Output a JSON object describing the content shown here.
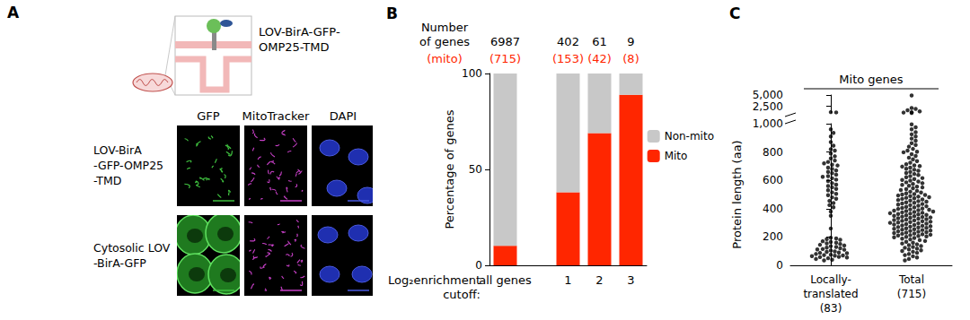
{
  "panel_labels": [
    "A",
    "B",
    "C"
  ],
  "diagram": {
    "construct_label": "LOV-BirA-GFP-\nOMP25-TMD",
    "columns": [
      "GFP",
      "MitoTracker",
      "DAPI"
    ],
    "rows": [
      "LOV-BirA\n-GFP-OMP25\n-TMD",
      "Cytosolic LOV\n-BirA-GFP"
    ]
  },
  "chart_data": [
    {
      "type": "bar",
      "stacked": true,
      "categories": [
        "all genes",
        null,
        "1",
        "2",
        "3"
      ],
      "series": [
        {
          "name": "Mito",
          "color": "#ff2600",
          "values": [
            10.2,
            null,
            38.1,
            68.9,
            88.9
          ]
        },
        {
          "name": "Non-mito",
          "color": "#c8c8c8",
          "values": [
            89.8,
            null,
            61.9,
            31.1,
            11.1
          ]
        }
      ],
      "ylim": [
        0,
        100
      ],
      "yticks": [
        0,
        50,
        100
      ],
      "grid": false,
      "legend": "right",
      "y_label": "Percentage of genes",
      "x_label": "Log₂enrichment\ncutoff:",
      "gene_counts_title": "Number\nof genes",
      "mito_counts_title": "(mito)",
      "gene_counts": [
        6987,
        null,
        402,
        61,
        9
      ],
      "mito_counts": [
        {
          "value": 715,
          "label": "(715)"
        },
        null,
        {
          "value": 153,
          "label": "(153)"
        },
        {
          "value": 42,
          "label": "(42)"
        },
        {
          "value": 8,
          "label": "(8)"
        }
      ]
    },
    {
      "type": "scatter",
      "title": "Mito genes",
      "categories": [
        "Locally-\ntranslated\n(83)",
        "Total\n(715)"
      ],
      "color": "#000000",
      "marker": "circle",
      "grid": false,
      "y_label": "Protein length (aa)",
      "ylim": [
        0,
        1000
      ],
      "yticks": [
        0,
        200,
        400,
        600,
        800,
        1000
      ],
      "y2lim": [
        1000,
        5000
      ],
      "y2ticks": [
        2500,
        5000
      ],
      "values": [
        [
          1180,
          1120,
          960,
          935,
          910,
          870,
          845,
          820,
          810,
          790,
          770,
          755,
          740,
          730,
          720,
          710,
          705,
          690,
          680,
          670,
          660,
          650,
          640,
          630,
          625,
          615,
          605,
          595,
          580,
          570,
          560,
          550,
          540,
          530,
          515,
          505,
          495,
          480,
          470,
          455,
          440,
          425,
          410,
          380,
          350,
          260,
          195,
          190,
          185,
          180,
          170,
          165,
          160,
          155,
          150,
          145,
          140,
          135,
          130,
          125,
          120,
          115,
          112,
          110,
          105,
          98,
          95,
          90,
          88,
          85,
          80,
          75,
          72,
          70,
          68,
          65,
          60,
          58,
          55,
          50,
          45,
          40,
          35
        ],
        [
          4900,
          2100,
          1900,
          1600,
          1350,
          1150,
          1080,
          995,
          975,
          960,
          940,
          925,
          910,
          895,
          880,
          862,
          850,
          838,
          822,
          810,
          802,
          798,
          785,
          772,
          760,
          748,
          736,
          725,
          714,
          706,
          701,
          697,
          690,
          682,
          675,
          668,
          660,
          652,
          645,
          638,
          630,
          622,
          616,
          609,
          603,
          598,
          592,
          586,
          580,
          574,
          568,
          562,
          556,
          550,
          544,
          538,
          532,
          526,
          520,
          514,
          508,
          503,
          500,
          497,
          493,
          489,
          485,
          481,
          477,
          473,
          469,
          465,
          461,
          457,
          453,
          449,
          445,
          441,
          437,
          433,
          429,
          425,
          421,
          417,
          413,
          409,
          405,
          401,
          398,
          395,
          392,
          389,
          386,
          383,
          380,
          377,
          374,
          371,
          368,
          365,
          362,
          359,
          356,
          353,
          350,
          347,
          344,
          341,
          338,
          335,
          332,
          329,
          326,
          323,
          320,
          317,
          314,
          311,
          308,
          305,
          302,
          300,
          297,
          294,
          291,
          288,
          285,
          282,
          279,
          276,
          273,
          270,
          267,
          264,
          261,
          258,
          255,
          252,
          249,
          246,
          243,
          240,
          237,
          234,
          231,
          228,
          225,
          222,
          219,
          216,
          213,
          210,
          207,
          204,
          201,
          198,
          193,
          188,
          183,
          178,
          172,
          166,
          160,
          154,
          148,
          142,
          136,
          130,
          124,
          118,
          112,
          106,
          101,
          96,
          88,
          80,
          72,
          64,
          55,
          45,
          35
        ]
      ]
    }
  ]
}
